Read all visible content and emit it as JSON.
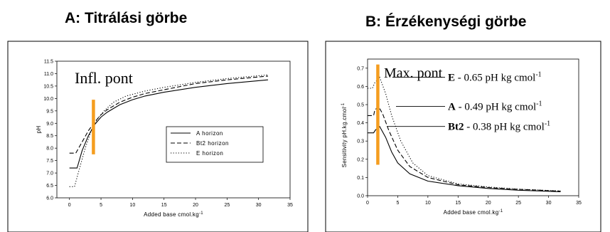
{
  "titles": {
    "a": "A: Titrálási görbe",
    "b": "B: Érzékenységi görbe"
  },
  "chart_data": [
    {
      "type": "line",
      "title": "A: Titrálási görbe",
      "xlabel": "Added base cmol.kg",
      "xlabel_sup": "-1",
      "ylabel": "pH",
      "xlim": [
        -2,
        35
      ],
      "ylim": [
        6.0,
        11.5
      ],
      "xticks": [
        0,
        5,
        10,
        15,
        20,
        25,
        30,
        35
      ],
      "yticks": [
        6.0,
        6.5,
        7.0,
        7.5,
        8.0,
        8.5,
        9.0,
        9.5,
        10.0,
        10.5,
        11.0,
        11.5
      ],
      "annotation": "Infl. pont",
      "marker_x": 3.8,
      "marker_range": [
        7.75,
        9.95
      ],
      "marker_color": "#f59d1f",
      "legend_position": "center-right",
      "series": [
        {
          "name": "A horizon",
          "dash": "solid",
          "x": [
            0,
            1.2,
            2,
            3,
            4,
            5,
            6,
            8,
            10,
            12,
            15,
            20,
            25,
            31.5
          ],
          "y": [
            7.2,
            7.2,
            7.9,
            8.5,
            8.95,
            9.25,
            9.45,
            9.75,
            9.95,
            10.1,
            10.25,
            10.45,
            10.6,
            10.75
          ]
        },
        {
          "name": "Bt2 horizon",
          "dash": "dashed",
          "x": [
            0,
            1,
            2,
            3,
            4,
            5,
            6,
            8,
            10,
            12,
            15,
            20,
            25,
            31.5
          ],
          "y": [
            7.8,
            7.8,
            8.25,
            8.7,
            9.05,
            9.35,
            9.55,
            9.85,
            10.05,
            10.2,
            10.35,
            10.6,
            10.75,
            10.9
          ]
        },
        {
          "name": "E horizon",
          "dash": "dotted",
          "x": [
            0,
            0.8,
            1.5,
            2.5,
            3.5,
            4.5,
            5.5,
            7,
            9,
            12,
            15,
            20,
            25,
            31.5
          ],
          "y": [
            6.45,
            6.45,
            7.1,
            8.0,
            8.75,
            9.2,
            9.5,
            9.85,
            10.1,
            10.3,
            10.45,
            10.65,
            10.8,
            10.95
          ]
        }
      ]
    },
    {
      "type": "line",
      "title": "B: Érzékenységi görbe",
      "xlabel": "Added base cmol.kg",
      "xlabel_sup": "-1",
      "ylabel": "Sensitivity pH.kg.cmol",
      "ylabel_sup": "-1",
      "xlim": [
        0,
        35
      ],
      "ylim": [
        0,
        0.75
      ],
      "xticks": [
        0,
        5,
        10,
        15,
        20,
        25,
        30,
        35
      ],
      "yticks": [
        0.0,
        0.1,
        0.2,
        0.3,
        0.4,
        0.5,
        0.6,
        0.7
      ],
      "annotation": "Max. pont",
      "marker_x": 1.7,
      "marker_range": [
        0.17,
        0.72
      ],
      "marker_color": "#f59d1f",
      "series": [
        {
          "name": "A",
          "dash": "dashed",
          "x": [
            0,
            1,
            1.2,
            1.8,
            2.5,
            3.5,
            5,
            7,
            10,
            15,
            20,
            25,
            32
          ],
          "y": [
            0.44,
            0.44,
            0.47,
            0.49,
            0.45,
            0.36,
            0.25,
            0.16,
            0.1,
            0.06,
            0.045,
            0.035,
            0.025
          ]
        },
        {
          "name": "Bt2",
          "dash": "solid",
          "x": [
            0,
            1,
            1.3,
            2,
            3,
            4,
            5,
            7,
            10,
            15,
            20,
            25,
            32
          ],
          "y": [
            0.345,
            0.345,
            0.36,
            0.38,
            0.32,
            0.24,
            0.18,
            0.12,
            0.08,
            0.055,
            0.04,
            0.03,
            0.022
          ]
        },
        {
          "name": "E",
          "dash": "dotted",
          "x": [
            0,
            0.8,
            1.2,
            2,
            3,
            4,
            5.5,
            7.5,
            10,
            15,
            20,
            25,
            32
          ],
          "y": [
            0.59,
            0.59,
            0.62,
            0.65,
            0.56,
            0.44,
            0.3,
            0.18,
            0.11,
            0.065,
            0.048,
            0.036,
            0.026
          ]
        }
      ],
      "callouts": [
        {
          "label": "E",
          "text": " - 0.65 pH kg cmol",
          "sup": "-1",
          "y": 0.65
        },
        {
          "label": "A",
          "text": " - 0.49 pH kg cmol",
          "sup": "-1",
          "y": 0.49
        },
        {
          "label": "Bt2",
          "text": " - 0.38 pH kg cmol",
          "sup": "-1",
          "y": 0.38
        }
      ]
    }
  ]
}
